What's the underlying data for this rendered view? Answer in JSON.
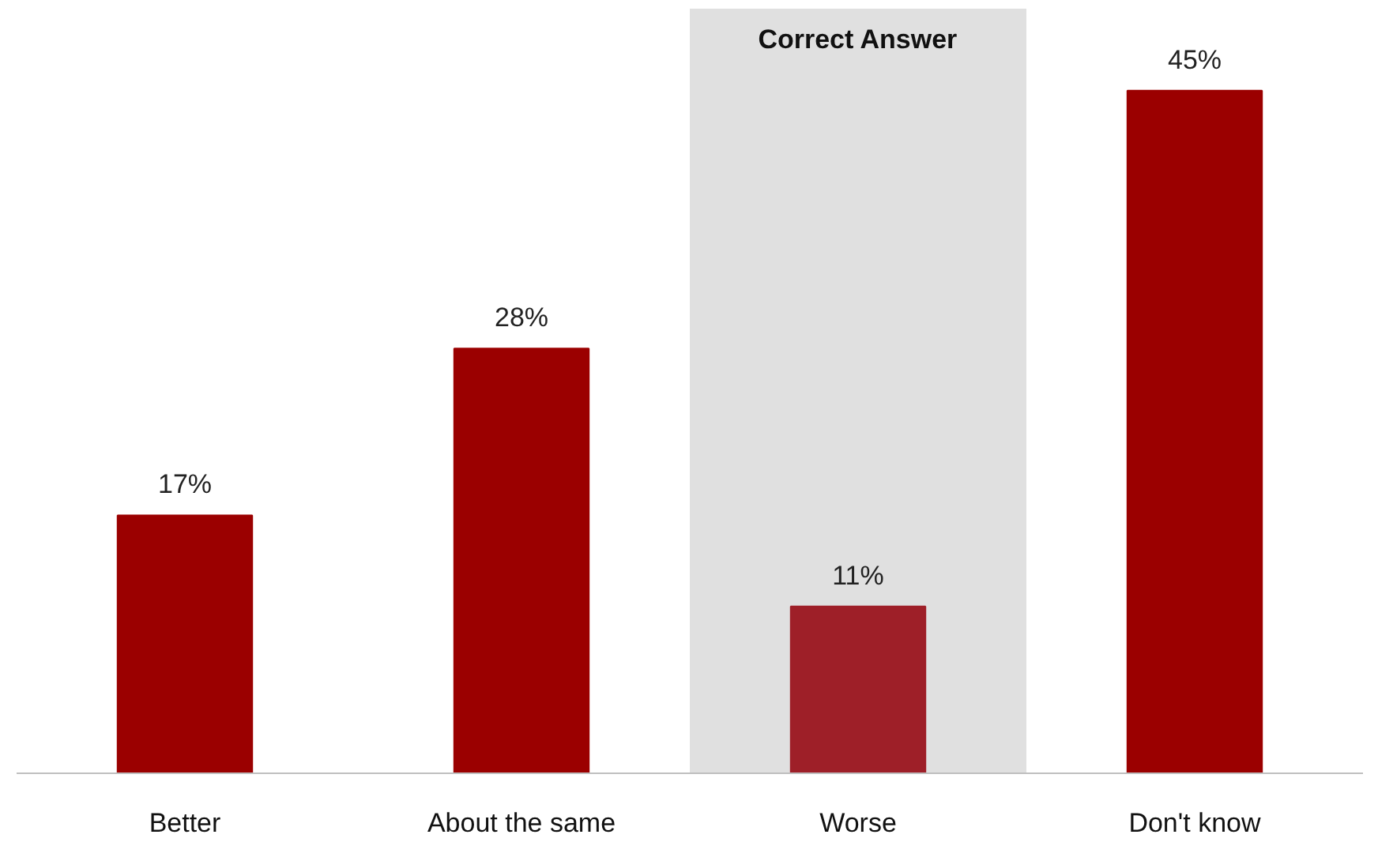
{
  "chart_data": {
    "type": "bar",
    "categories": [
      "Better",
      "About the same",
      "Worse",
      "Don't know"
    ],
    "values": [
      17,
      28,
      11,
      45
    ],
    "colors": [
      "#9b0000",
      "#9b0000",
      "#9e1f28",
      "#9b0000"
    ],
    "value_labels": [
      "17%",
      "28%",
      "11%",
      "45%"
    ],
    "bands": [
      {
        "axis": "x",
        "from": "Worse",
        "to": "Worse",
        "label": "Correct Answer",
        "color": "#e0e0e0"
      }
    ]
  }
}
